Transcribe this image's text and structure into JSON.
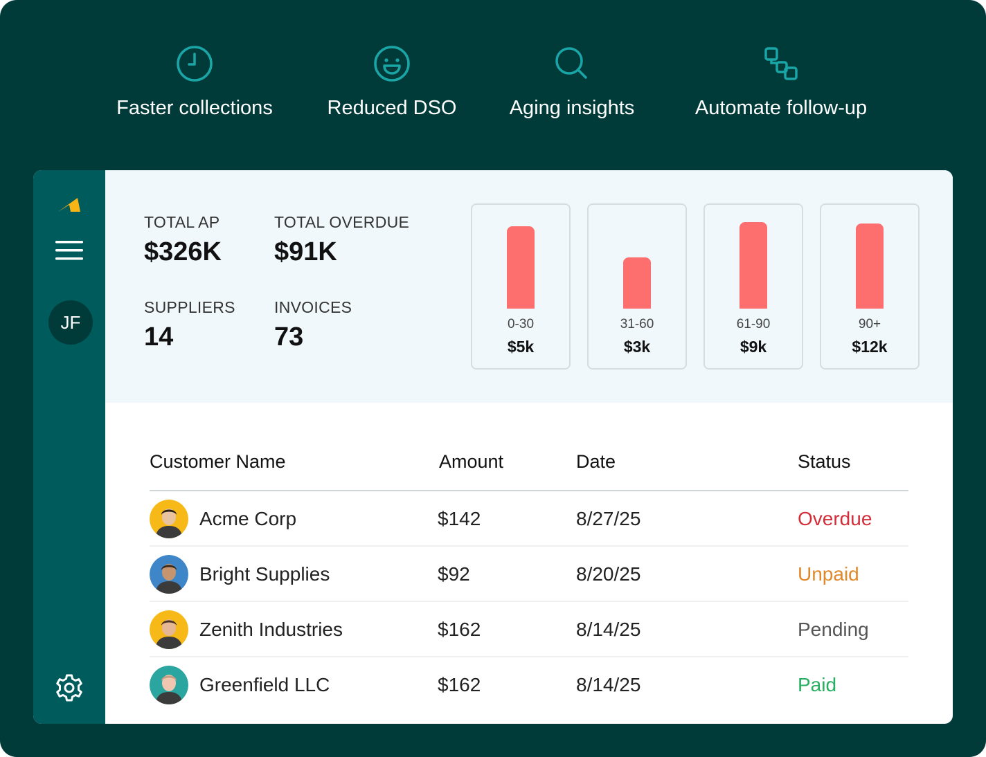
{
  "features": [
    {
      "label": "Faster collections",
      "icon": "clock-icon"
    },
    {
      "label": "Reduced DSO",
      "icon": "smile-icon"
    },
    {
      "label": "Aging insights",
      "icon": "search-icon"
    },
    {
      "label": "Automate follow-up",
      "icon": "workflow-icon"
    }
  ],
  "colors": {
    "page_bg": "#003b3a",
    "sidebar_bg": "#005b5d",
    "summary_bg": "#f0f8fb",
    "accent_teal": "#1aa6a6",
    "bar": "#fd6e6e",
    "logo": "#f6b417",
    "status_overdue": "#d32f3b",
    "status_unpaid": "#e0892a",
    "status_pending": "#555555",
    "status_paid": "#27ae60"
  },
  "sidebar": {
    "logo_icon": "brand-logo-icon",
    "menu_icon": "hamburger-menu-icon",
    "user_initials": "JF",
    "settings_icon": "gear-icon"
  },
  "summary": {
    "total_ap": {
      "label": "TOTAL AP",
      "value": "$326K"
    },
    "total_overdue": {
      "label": "TOTAL OVERDUE",
      "value": "$91K"
    },
    "suppliers": {
      "label": "SUPPLIERS",
      "value": "14"
    },
    "invoices": {
      "label": "INVOICES",
      "value": "73"
    }
  },
  "chart_data": {
    "type": "bar",
    "categories": [
      "0-30",
      "31-60",
      "61-90",
      "90+"
    ],
    "values": [
      5,
      3,
      9,
      12
    ],
    "value_labels": [
      "$5k",
      "$3k",
      "$9k",
      "$12k"
    ],
    "title": "",
    "xlabel": "",
    "ylabel": "",
    "bar_fill_fraction": [
      0.85,
      0.53,
      0.89,
      0.88
    ],
    "grid": false
  },
  "table": {
    "headers": {
      "name": "Customer Name",
      "amount": "Amount",
      "date": "Date",
      "status": "Status"
    },
    "rows": [
      {
        "name": "Acme Corp",
        "amount": "$142",
        "date": "8/27/25",
        "status": "Overdue",
        "status_key": "overdue",
        "avatar_bg": "#f6b917",
        "skin": "#e9c2a0",
        "hair": "#2b2118"
      },
      {
        "name": "Bright Supplies",
        "amount": "$92",
        "date": "8/20/25",
        "status": "Unpaid",
        "status_key": "unpaid",
        "avatar_bg": "#3f86c9",
        "skin": "#c69570",
        "hair": "#3a2a1c"
      },
      {
        "name": "Zenith Industries",
        "amount": "$162",
        "date": "8/14/25",
        "status": "Pending",
        "status_key": "pending",
        "avatar_bg": "#f6b917",
        "skin": "#e6b795",
        "hair": "#4a3322"
      },
      {
        "name": "Greenfield LLC",
        "amount": "$162",
        "date": "8/14/25",
        "status": "Paid",
        "status_key": "paid",
        "avatar_bg": "#2aa59f",
        "skin": "#efc6b0",
        "hair": "#c99d82"
      }
    ]
  }
}
